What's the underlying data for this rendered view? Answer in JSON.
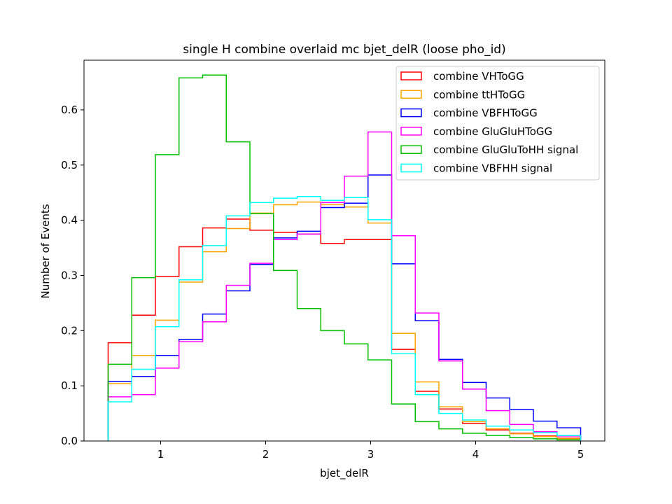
{
  "chart_data": {
    "type": "histogram-step",
    "title": "single H combine overlaid mc bjet_delR (loose pho_id)",
    "xlabel": "bjet_delR",
    "ylabel": "Number of Events",
    "xlim": [
      0.27,
      5.23
    ],
    "ylim": [
      0.0,
      0.69
    ],
    "xticks": [
      1,
      2,
      3,
      4,
      5
    ],
    "xtick_labels": [
      "1",
      "2",
      "3",
      "4",
      "5"
    ],
    "yticks": [
      0.0,
      0.1,
      0.2,
      0.3,
      0.4,
      0.5,
      0.6
    ],
    "ytick_labels": [
      "0.0",
      "0.1",
      "0.2",
      "0.3",
      "0.4",
      "0.5",
      "0.6"
    ],
    "legend_position": "upper right",
    "bin_edges": [
      0.5,
      0.725,
      0.95,
      1.175,
      1.4,
      1.625,
      1.85,
      2.075,
      2.3,
      2.525,
      2.75,
      2.975,
      3.2,
      3.425,
      3.65,
      3.875,
      4.1,
      4.325,
      4.55,
      4.775,
      5.0
    ],
    "series": [
      {
        "name": "combine VHToGG",
        "color": "#ff0000",
        "values": [
          0.178,
          0.228,
          0.298,
          0.352,
          0.386,
          0.402,
          0.382,
          0.378,
          0.375,
          0.358,
          0.365,
          0.365,
          0.166,
          0.09,
          0.058,
          0.032,
          0.02,
          0.014,
          0.009,
          0.005
        ]
      },
      {
        "name": "combine ttHToGG",
        "color": "#ffa500",
        "values": [
          0.104,
          0.155,
          0.219,
          0.288,
          0.343,
          0.385,
          0.413,
          0.428,
          0.433,
          0.428,
          0.424,
          0.395,
          0.195,
          0.107,
          0.062,
          0.035,
          0.022,
          0.013,
          0.008,
          0.004
        ]
      },
      {
        "name": "combine VBFHToGG",
        "color": "#0000ff",
        "values": [
          0.108,
          0.117,
          0.155,
          0.184,
          0.23,
          0.272,
          0.32,
          0.368,
          0.38,
          0.423,
          0.431,
          0.482,
          0.321,
          0.218,
          0.148,
          0.106,
          0.078,
          0.057,
          0.036,
          0.024
        ]
      },
      {
        "name": "combine GluGluHToGG",
        "color": "#ff00ff",
        "values": [
          0.08,
          0.084,
          0.132,
          0.18,
          0.216,
          0.282,
          0.322,
          0.365,
          0.375,
          0.432,
          0.48,
          0.56,
          0.372,
          0.232,
          0.145,
          0.094,
          0.055,
          0.03,
          0.017,
          0.009
        ]
      },
      {
        "name": "combine GluGluToHH signal",
        "color": "#00c000",
        "values": [
          0.139,
          0.296,
          0.519,
          0.658,
          0.663,
          0.542,
          0.412,
          0.309,
          0.24,
          0.2,
          0.176,
          0.147,
          0.067,
          0.035,
          0.022,
          0.014,
          0.01,
          0.006,
          0.004,
          0.002
        ]
      },
      {
        "name": "combine VBFHH signal",
        "color": "#00ffff",
        "values": [
          0.071,
          0.13,
          0.207,
          0.292,
          0.354,
          0.408,
          0.432,
          0.44,
          0.443,
          0.436,
          0.441,
          0.401,
          0.158,
          0.084,
          0.05,
          0.038,
          0.027,
          0.02,
          0.015,
          0.01
        ]
      }
    ]
  }
}
